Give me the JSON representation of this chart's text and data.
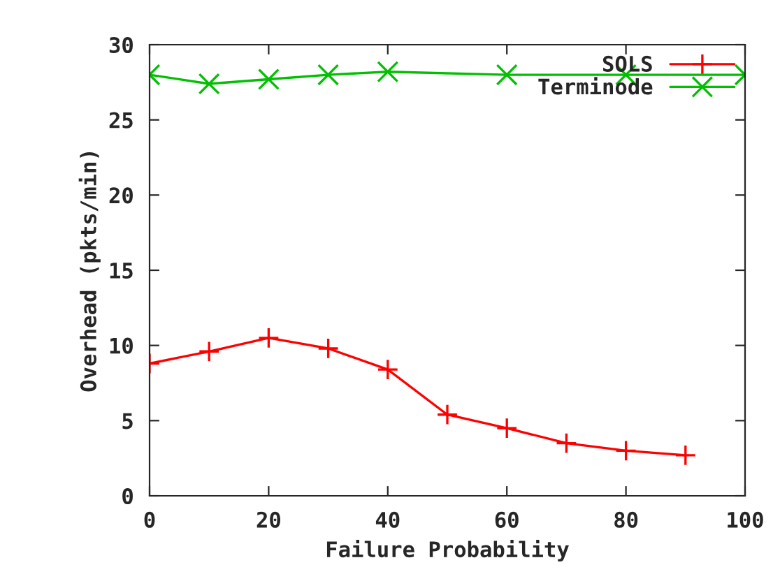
{
  "chart_data": {
    "type": "line",
    "xlabel": "Failure Probability",
    "ylabel": "Overhead (pkts/min)",
    "xlim": [
      0,
      100
    ],
    "xticks": [
      0,
      20,
      40,
      60,
      80,
      100
    ],
    "ylim": [
      0,
      30
    ],
    "yticks": [
      0,
      5,
      10,
      15,
      20,
      25,
      30
    ],
    "grid": false,
    "legend": "top right",
    "line_style": "solid",
    "series": [
      {
        "name": "SOLS",
        "color": "#ff0000",
        "marker": "plus",
        "x": [
          0,
          10,
          20,
          30,
          40,
          50,
          60,
          70,
          80,
          90
        ],
        "values": [
          8.8,
          9.6,
          10.5,
          9.8,
          8.4,
          5.4,
          4.5,
          3.5,
          3.0,
          2.7
        ]
      },
      {
        "name": "Terminode",
        "color": "#00c000",
        "marker": "cross",
        "x": [
          0,
          10,
          20,
          30,
          40,
          60,
          80,
          100
        ],
        "values": [
          28.0,
          27.4,
          27.7,
          28.0,
          28.2,
          28.0,
          28.0,
          28.0
        ]
      }
    ]
  }
}
